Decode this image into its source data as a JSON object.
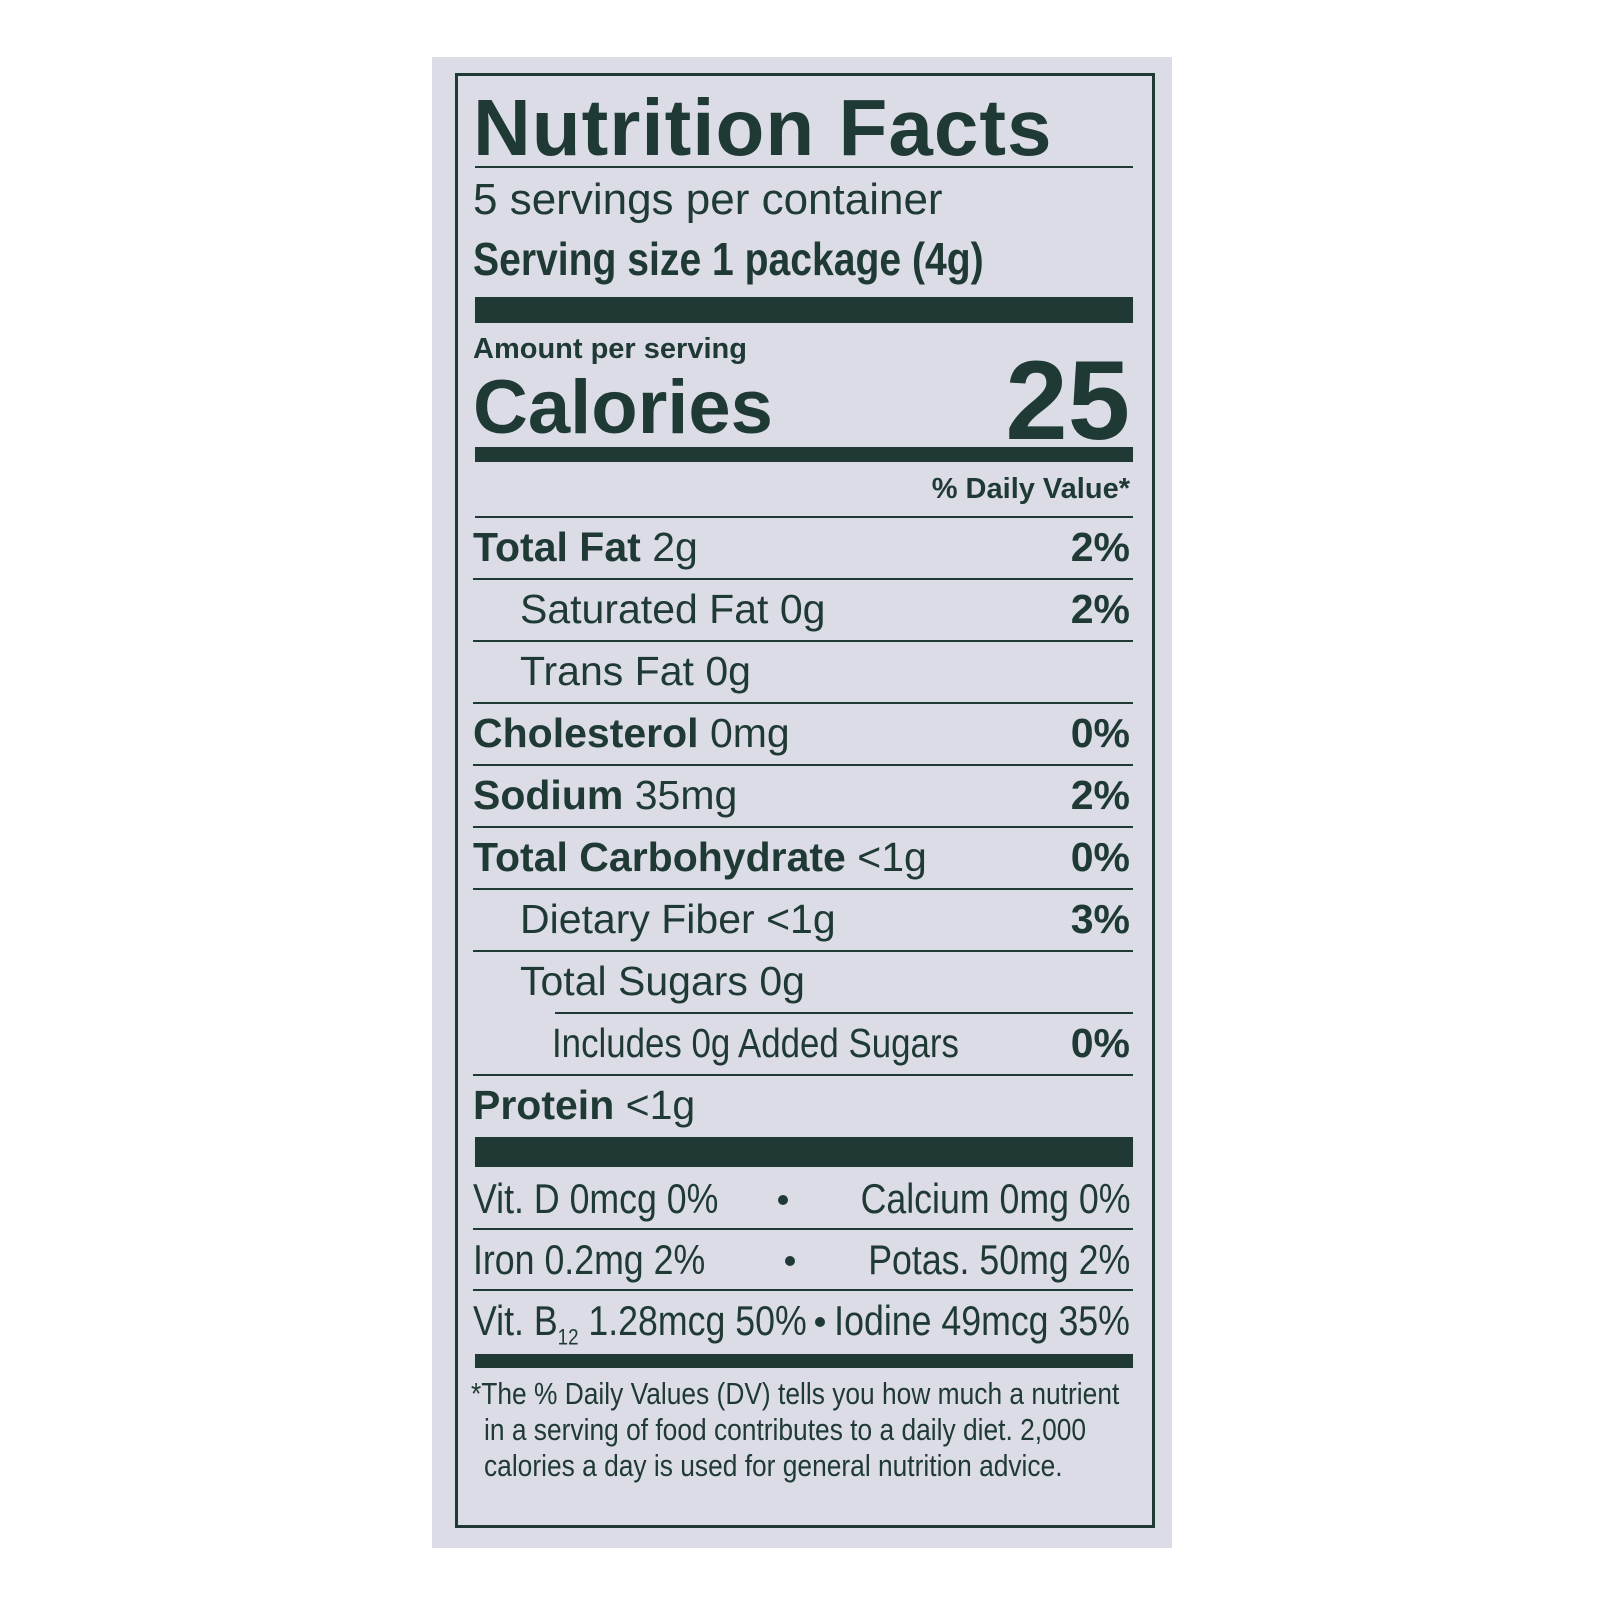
{
  "title": "Nutrition Facts",
  "servings": "5 servings per container",
  "serving_size": {
    "label": "Serving size",
    "value": "1 package (4g)"
  },
  "amount_per_serving": "Amount per serving",
  "calories": {
    "label": "Calories",
    "value": "25"
  },
  "daily_value_header": "% Daily Value*",
  "nutrients": [
    {
      "name": "Total Fat",
      "amount": "2g",
      "dv": "2%"
    },
    {
      "name": "Saturated Fat",
      "amount": "0g",
      "dv": "2%"
    },
    {
      "name": "Trans Fat",
      "amount": "0g"
    },
    {
      "name": "Cholesterol",
      "amount": "0mg",
      "dv": "0%"
    },
    {
      "name": "Sodium",
      "amount": "35mg",
      "dv": "2%"
    },
    {
      "name": "Total Carbohydrate",
      "amount": "<1g",
      "dv": "0%"
    },
    {
      "name": "Dietary Fiber",
      "amount": "<1g",
      "dv": "3%"
    },
    {
      "name": "Total Sugars",
      "amount": "0g"
    },
    {
      "name": "Includes 0g Added Sugars",
      "dv": "0%"
    },
    {
      "name": "Protein",
      "amount": "<1g"
    }
  ],
  "vitamins": [
    [
      {
        "name": "Vit. D",
        "amount": "0mcg",
        "dv": "0%"
      },
      {
        "name": "Calcium",
        "amount": "0mg",
        "dv": "0%"
      }
    ],
    [
      {
        "name": "Iron",
        "amount": "0.2mg",
        "dv": "2%"
      },
      {
        "name": "Potas.",
        "amount": "50mg",
        "dv": "2%"
      }
    ],
    [
      {
        "name": "Vit. B",
        "sub": "12",
        "amount": "1.28mcg",
        "dv": "50%"
      },
      {
        "name": "Iodine",
        "amount": "49mcg",
        "dv": "35%"
      }
    ]
  ],
  "footnote": [
    "*The % Daily Values (DV) tells you how much a nutrient",
    "in a serving of food contributes to a daily diet. 2,000",
    "calories a day is used for general nutrition advice."
  ]
}
